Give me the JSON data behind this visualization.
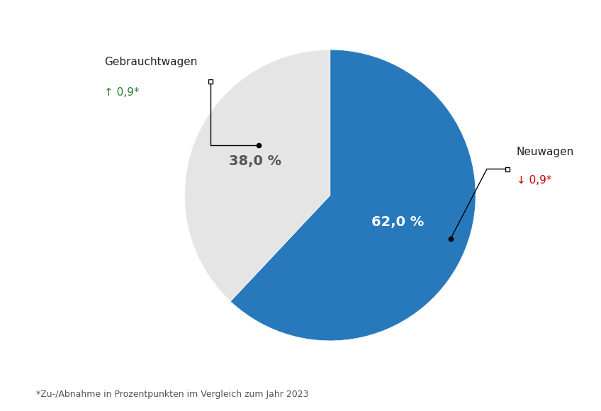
{
  "slices": [
    62.0,
    38.0
  ],
  "labels": [
    "Neuwagen",
    "Gebrauchtwagen"
  ],
  "colors": [
    "#2779BC",
    "#E5E5E5"
  ],
  "start_angle": 90,
  "pct_labels": [
    "62,0 %",
    "38,0 %"
  ],
  "pct_colors": [
    "white",
    "#555555"
  ],
  "footnote": "*Zu-/Abnahme in Prozentpunkten im Vergleich zum Jahr 2023",
  "bg_color": "#ffffff"
}
